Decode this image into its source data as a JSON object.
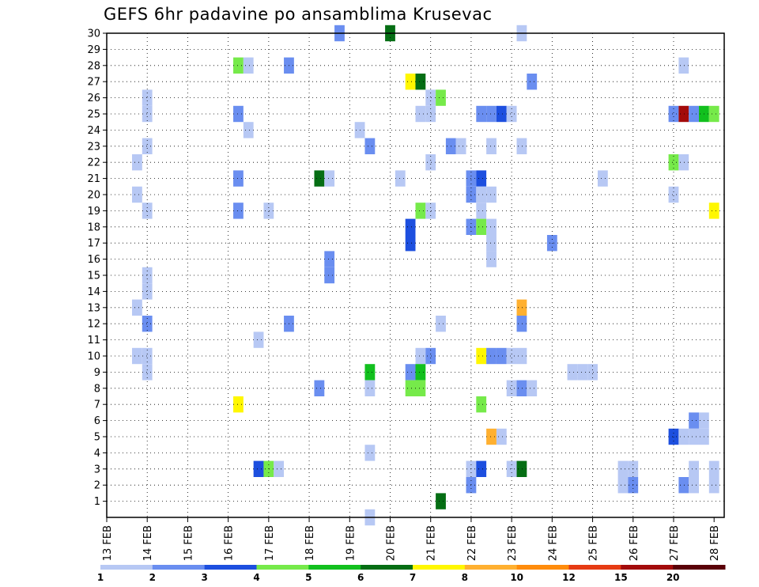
{
  "chart_data": {
    "type": "heatmap",
    "title": "GEFS 6hr padavine po ansamblima Krusevac",
    "xlabel": "",
    "ylabel": "",
    "x_tick_labels": [
      "13 FEB",
      "14 FEB",
      "15 FEB",
      "16 FEB",
      "17 FEB",
      "18 FEB",
      "19 FEB",
      "20 FEB",
      "21 FEB",
      "22 FEB",
      "23 FEB",
      "24 FEB",
      "25 FEB",
      "26 FEB",
      "27 FEB",
      "28 FEB"
    ],
    "y_tick_labels": [
      "1",
      "2",
      "3",
      "4",
      "5",
      "6",
      "7",
      "8",
      "9",
      "10",
      "11",
      "12",
      "13",
      "14",
      "15",
      "16",
      "17",
      "18",
      "19",
      "20",
      "21",
      "22",
      "23",
      "24",
      "25",
      "26",
      "27",
      "28",
      "29",
      "30"
    ],
    "xlim": [
      0,
      61
    ],
    "ylim": [
      0,
      30
    ],
    "grid": true,
    "legend": {
      "placement": "bottom",
      "thresholds": [
        "1",
        "2",
        "3",
        "4",
        "5",
        "6",
        "7",
        "8",
        "10",
        "12",
        "15",
        "20"
      ],
      "colors": [
        "#b7c8f4",
        "#6a8ef0",
        "#1d4fdf",
        "#76ea4a",
        "#12c01e",
        "#056e14",
        "#fff700",
        "#ffb030",
        "#ff8c0c",
        "#e63b13",
        "#a30b0b",
        "#5a0008"
      ]
    },
    "cells": [
      {
        "x": 23,
        "y": 30,
        "c": 1
      },
      {
        "x": 28,
        "y": 30,
        "c": 5
      },
      {
        "x": 41,
        "y": 30,
        "c": 0
      },
      {
        "x": 13,
        "y": 28,
        "c": 3
      },
      {
        "x": 14,
        "y": 28,
        "c": 0
      },
      {
        "x": 18,
        "y": 28,
        "c": 1
      },
      {
        "x": 57,
        "y": 28,
        "c": 0
      },
      {
        "x": 30,
        "y": 27,
        "c": 6
      },
      {
        "x": 31,
        "y": 27,
        "c": 5
      },
      {
        "x": 42,
        "y": 27,
        "c": 1
      },
      {
        "x": 4,
        "y": 26,
        "c": 0
      },
      {
        "x": 32,
        "y": 26,
        "c": 0
      },
      {
        "x": 33,
        "y": 26,
        "c": 3
      },
      {
        "x": 4,
        "y": 25,
        "c": 0
      },
      {
        "x": 13,
        "y": 25,
        "c": 1
      },
      {
        "x": 31,
        "y": 25,
        "c": 0
      },
      {
        "x": 32,
        "y": 25,
        "c": 0
      },
      {
        "x": 37,
        "y": 25,
        "c": 1
      },
      {
        "x": 38,
        "y": 25,
        "c": 1
      },
      {
        "x": 39,
        "y": 25,
        "c": 2
      },
      {
        "x": 40,
        "y": 25,
        "c": 0
      },
      {
        "x": 56,
        "y": 25,
        "c": 1
      },
      {
        "x": 57,
        "y": 25,
        "c": 10
      },
      {
        "x": 58,
        "y": 25,
        "c": 1
      },
      {
        "x": 59,
        "y": 25,
        "c": 4
      },
      {
        "x": 60,
        "y": 25,
        "c": 3
      },
      {
        "x": 14,
        "y": 24,
        "c": 0
      },
      {
        "x": 25,
        "y": 24,
        "c": 0
      },
      {
        "x": 4,
        "y": 23,
        "c": 0
      },
      {
        "x": 26,
        "y": 23,
        "c": 1
      },
      {
        "x": 34,
        "y": 23,
        "c": 1
      },
      {
        "x": 35,
        "y": 23,
        "c": 0
      },
      {
        "x": 38,
        "y": 23,
        "c": 0
      },
      {
        "x": 41,
        "y": 23,
        "c": 0
      },
      {
        "x": 3,
        "y": 22,
        "c": 0
      },
      {
        "x": 32,
        "y": 22,
        "c": 0
      },
      {
        "x": 56,
        "y": 22,
        "c": 3
      },
      {
        "x": 57,
        "y": 22,
        "c": 0
      },
      {
        "x": 13,
        "y": 21,
        "c": 1
      },
      {
        "x": 21,
        "y": 21,
        "c": 5
      },
      {
        "x": 22,
        "y": 21,
        "c": 0
      },
      {
        "x": 29,
        "y": 21,
        "c": 0
      },
      {
        "x": 36,
        "y": 21,
        "c": 1
      },
      {
        "x": 37,
        "y": 21,
        "c": 2
      },
      {
        "x": 49,
        "y": 21,
        "c": 0
      },
      {
        "x": 3,
        "y": 20,
        "c": 0
      },
      {
        "x": 36,
        "y": 20,
        "c": 1
      },
      {
        "x": 37,
        "y": 20,
        "c": 0
      },
      {
        "x": 38,
        "y": 20,
        "c": 0
      },
      {
        "x": 56,
        "y": 20,
        "c": 0
      },
      {
        "x": 4,
        "y": 19,
        "c": 0
      },
      {
        "x": 13,
        "y": 19,
        "c": 1
      },
      {
        "x": 16,
        "y": 19,
        "c": 0
      },
      {
        "x": 31,
        "y": 19,
        "c": 3
      },
      {
        "x": 32,
        "y": 19,
        "c": 0
      },
      {
        "x": 37,
        "y": 19,
        "c": 0
      },
      {
        "x": 60,
        "y": 19,
        "c": 6
      },
      {
        "x": 30,
        "y": 18,
        "c": 2
      },
      {
        "x": 36,
        "y": 18,
        "c": 1
      },
      {
        "x": 37,
        "y": 18,
        "c": 3
      },
      {
        "x": 38,
        "y": 18,
        "c": 0
      },
      {
        "x": 30,
        "y": 17,
        "c": 2
      },
      {
        "x": 38,
        "y": 17,
        "c": 0
      },
      {
        "x": 44,
        "y": 17,
        "c": 1
      },
      {
        "x": 38,
        "y": 16,
        "c": 0
      },
      {
        "x": 22,
        "y": 16,
        "c": 1
      },
      {
        "x": 22,
        "y": 15,
        "c": 1
      },
      {
        "x": 4,
        "y": 15,
        "c": 0
      },
      {
        "x": 4,
        "y": 14,
        "c": 0
      },
      {
        "x": 3,
        "y": 13,
        "c": 0
      },
      {
        "x": 41,
        "y": 13,
        "c": 7
      },
      {
        "x": 4,
        "y": 12,
        "c": 1
      },
      {
        "x": 18,
        "y": 12,
        "c": 1
      },
      {
        "x": 33,
        "y": 12,
        "c": 0
      },
      {
        "x": 41,
        "y": 12,
        "c": 1
      },
      {
        "x": 15,
        "y": 11,
        "c": 0
      },
      {
        "x": 3,
        "y": 10,
        "c": 0
      },
      {
        "x": 4,
        "y": 10,
        "c": 0
      },
      {
        "x": 31,
        "y": 10,
        "c": 0
      },
      {
        "x": 32,
        "y": 10,
        "c": 1
      },
      {
        "x": 37,
        "y": 10,
        "c": 6
      },
      {
        "x": 38,
        "y": 10,
        "c": 1
      },
      {
        "x": 39,
        "y": 10,
        "c": 1
      },
      {
        "x": 40,
        "y": 10,
        "c": 0
      },
      {
        "x": 41,
        "y": 10,
        "c": 0
      },
      {
        "x": 4,
        "y": 9,
        "c": 0
      },
      {
        "x": 26,
        "y": 9,
        "c": 4
      },
      {
        "x": 30,
        "y": 9,
        "c": 1
      },
      {
        "x": 31,
        "y": 9,
        "c": 4
      },
      {
        "x": 46,
        "y": 9,
        "c": 0
      },
      {
        "x": 47,
        "y": 9,
        "c": 0
      },
      {
        "x": 48,
        "y": 9,
        "c": 0
      },
      {
        "x": 21,
        "y": 8,
        "c": 1
      },
      {
        "x": 26,
        "y": 8,
        "c": 0
      },
      {
        "x": 30,
        "y": 8,
        "c": 3
      },
      {
        "x": 31,
        "y": 8,
        "c": 3
      },
      {
        "x": 40,
        "y": 8,
        "c": 0
      },
      {
        "x": 41,
        "y": 8,
        "c": 1
      },
      {
        "x": 42,
        "y": 8,
        "c": 0
      },
      {
        "x": 13,
        "y": 7,
        "c": 6
      },
      {
        "x": 37,
        "y": 7,
        "c": 3
      },
      {
        "x": 58,
        "y": 6,
        "c": 1
      },
      {
        "x": 59,
        "y": 6,
        "c": 0
      },
      {
        "x": 38,
        "y": 5,
        "c": 7
      },
      {
        "x": 39,
        "y": 5,
        "c": 0
      },
      {
        "x": 56,
        "y": 5,
        "c": 2
      },
      {
        "x": 57,
        "y": 5,
        "c": 0
      },
      {
        "x": 58,
        "y": 5,
        "c": 0
      },
      {
        "x": 59,
        "y": 5,
        "c": 0
      },
      {
        "x": 26,
        "y": 4,
        "c": 0
      },
      {
        "x": 15,
        "y": 3,
        "c": 2
      },
      {
        "x": 16,
        "y": 3,
        "c": 3
      },
      {
        "x": 17,
        "y": 3,
        "c": 0
      },
      {
        "x": 36,
        "y": 3,
        "c": 0
      },
      {
        "x": 37,
        "y": 3,
        "c": 2
      },
      {
        "x": 40,
        "y": 3,
        "c": 0
      },
      {
        "x": 41,
        "y": 3,
        "c": 5
      },
      {
        "x": 51,
        "y": 3,
        "c": 0
      },
      {
        "x": 52,
        "y": 3,
        "c": 0
      },
      {
        "x": 58,
        "y": 3,
        "c": 0
      },
      {
        "x": 60,
        "y": 3,
        "c": 0
      },
      {
        "x": 36,
        "y": 2,
        "c": 1
      },
      {
        "x": 51,
        "y": 2,
        "c": 0
      },
      {
        "x": 52,
        "y": 2,
        "c": 1
      },
      {
        "x": 57,
        "y": 2,
        "c": 1
      },
      {
        "x": 58,
        "y": 2,
        "c": 0
      },
      {
        "x": 60,
        "y": 2,
        "c": 0
      },
      {
        "x": 33,
        "y": 1,
        "c": 5
      },
      {
        "x": 26,
        "y": 0,
        "c": 0
      }
    ]
  }
}
